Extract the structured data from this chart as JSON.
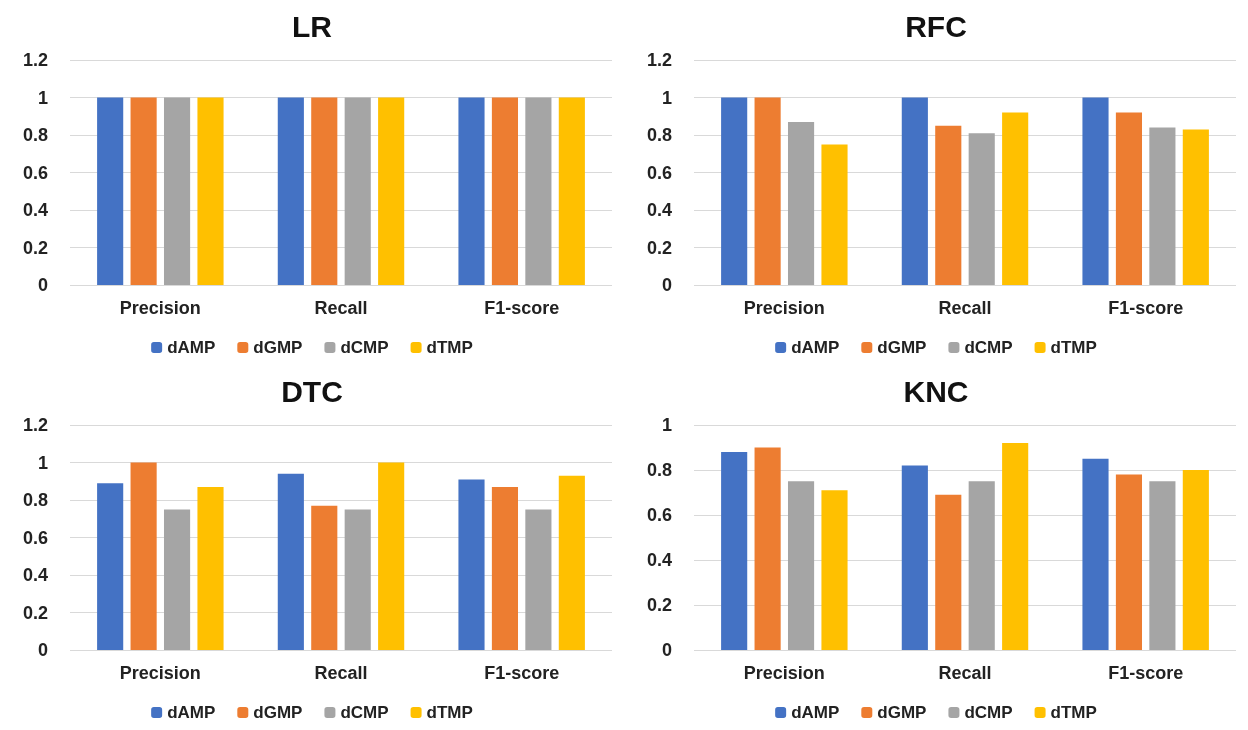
{
  "chart_data": [
    {
      "type": "bar",
      "title": "LR",
      "categories": [
        "Precision",
        "Recall",
        "F1-score"
      ],
      "series": [
        {
          "name": "dAMP",
          "color": "#4472c4",
          "values": [
            1,
            1,
            1
          ]
        },
        {
          "name": "dGMP",
          "color": "#ed7d31",
          "values": [
            1,
            1,
            1
          ]
        },
        {
          "name": "dCMP",
          "color": "#a5a5a5",
          "values": [
            1,
            1,
            1
          ]
        },
        {
          "name": "dTMP",
          "color": "#ffc000",
          "values": [
            1,
            1,
            1
          ]
        }
      ],
      "ylim": [
        0,
        1.2
      ],
      "yticks": [
        0,
        0.2,
        0.4,
        0.6,
        0.8,
        1,
        1.2
      ],
      "grid": "y",
      "legend": "bottom"
    },
    {
      "type": "bar",
      "title": "RFC",
      "categories": [
        "Precision",
        "Recall",
        "F1-score"
      ],
      "series": [
        {
          "name": "dAMP",
          "color": "#4472c4",
          "values": [
            1,
            1,
            1
          ]
        },
        {
          "name": "dGMP",
          "color": "#ed7d31",
          "values": [
            1,
            0.85,
            0.92
          ]
        },
        {
          "name": "dCMP",
          "color": "#a5a5a5",
          "values": [
            0.87,
            0.81,
            0.84
          ]
        },
        {
          "name": "dTMP",
          "color": "#ffc000",
          "values": [
            0.75,
            0.92,
            0.83
          ]
        }
      ],
      "ylim": [
        0,
        1.2
      ],
      "yticks": [
        0,
        0.2,
        0.4,
        0.6,
        0.8,
        1,
        1.2
      ],
      "grid": "y",
      "legend": "bottom"
    },
    {
      "type": "bar",
      "title": "DTC",
      "categories": [
        "Precision",
        "Recall",
        "F1-score"
      ],
      "series": [
        {
          "name": "dAMP",
          "color": "#4472c4",
          "values": [
            0.89,
            0.94,
            0.91
          ]
        },
        {
          "name": "dGMP",
          "color": "#ed7d31",
          "values": [
            1,
            0.77,
            0.87
          ]
        },
        {
          "name": "dCMP",
          "color": "#a5a5a5",
          "values": [
            0.75,
            0.75,
            0.75
          ]
        },
        {
          "name": "dTMP",
          "color": "#ffc000",
          "values": [
            0.87,
            1,
            0.93
          ]
        }
      ],
      "ylim": [
        0,
        1.2
      ],
      "yticks": [
        0,
        0.2,
        0.4,
        0.6,
        0.8,
        1,
        1.2
      ],
      "grid": "y",
      "legend": "bottom"
    },
    {
      "type": "bar",
      "title": "KNC",
      "categories": [
        "Precision",
        "Recall",
        "F1-score"
      ],
      "series": [
        {
          "name": "dAMP",
          "color": "#4472c4",
          "values": [
            0.88,
            0.82,
            0.85
          ]
        },
        {
          "name": "dGMP",
          "color": "#ed7d31",
          "values": [
            0.9,
            0.69,
            0.78
          ]
        },
        {
          "name": "dCMP",
          "color": "#a5a5a5",
          "values": [
            0.75,
            0.75,
            0.75
          ]
        },
        {
          "name": "dTMP",
          "color": "#ffc000",
          "values": [
            0.71,
            0.92,
            0.8
          ]
        }
      ],
      "ylim": [
        0,
        1
      ],
      "yticks": [
        0,
        0.2,
        0.4,
        0.6,
        0.8,
        1
      ],
      "grid": "y",
      "legend": "bottom"
    }
  ]
}
